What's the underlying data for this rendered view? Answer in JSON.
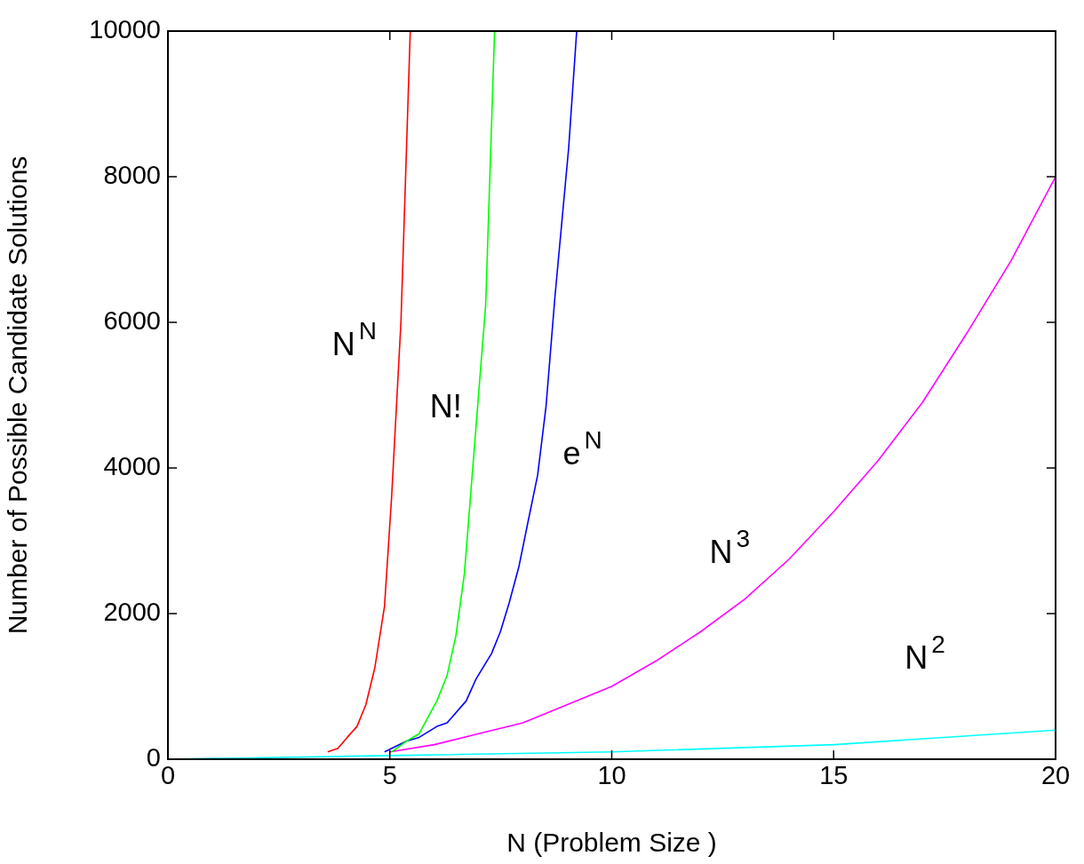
{
  "chart_data": {
    "type": "line",
    "xlabel": "N (Problem Size )",
    "ylabel": "Number of Possible Candidate Solutions",
    "xlim": [
      0,
      20
    ],
    "xticks": [
      0,
      5,
      10,
      15,
      20
    ],
    "ylim": [
      0,
      10000
    ],
    "yticks": [
      0,
      2000,
      4000,
      6000,
      8000,
      10000
    ],
    "grid": false,
    "legend": false,
    "marker": "none",
    "line_style": "solid",
    "series": [
      {
        "color": "#ff0000",
        "x": [
          3.6,
          3.83,
          4.04,
          4.26,
          4.46,
          4.66,
          4.88,
          5.04,
          5.25,
          5.46
        ],
        "values": [
          100,
          150,
          300,
          450,
          750,
          1250,
          2100,
          3600,
          6000,
          10000
        ]
      },
      {
        "color": "#00ff00",
        "x": [
          5.04,
          5.38,
          5.66,
          5.88,
          6.06,
          6.29,
          6.49,
          6.68,
          6.94,
          7.16,
          7.36
        ],
        "values": [
          100,
          250,
          350,
          600,
          800,
          1150,
          1700,
          2550,
          4550,
          6250,
          10000
        ]
      },
      {
        "color": "#0000ff",
        "x": [
          4.88,
          5.38,
          5.66,
          6.06,
          6.29,
          6.72,
          6.94,
          7.29,
          7.49,
          7.69,
          7.91,
          8.11,
          8.33,
          8.52,
          8.72,
          9.03,
          9.21
        ],
        "values": [
          100,
          250,
          300,
          450,
          500,
          800,
          1100,
          1450,
          1750,
          2150,
          2650,
          3250,
          3900,
          4850,
          6350,
          8400,
          10000
        ]
      },
      {
        "color": "#ff00ff",
        "x": [
          5,
          6,
          7,
          8,
          9,
          10,
          11,
          12,
          13,
          14,
          15,
          16,
          17,
          18,
          19,
          20
        ],
        "values": [
          100,
          200,
          350,
          500,
          750,
          1000,
          1350,
          1750,
          2200,
          2750,
          3400,
          4100,
          4900,
          5850,
          6850,
          8000
        ]
      },
      {
        "color": "#00ffff",
        "x": [
          0,
          5,
          10,
          15,
          20
        ],
        "values": [
          0,
          50,
          100,
          200,
          400
        ]
      }
    ],
    "annotations": [
      "N$^{N}$",
      "N!",
      "e$^{N}$",
      "N$^{3}$",
      "N$^{2}$"
    ]
  }
}
